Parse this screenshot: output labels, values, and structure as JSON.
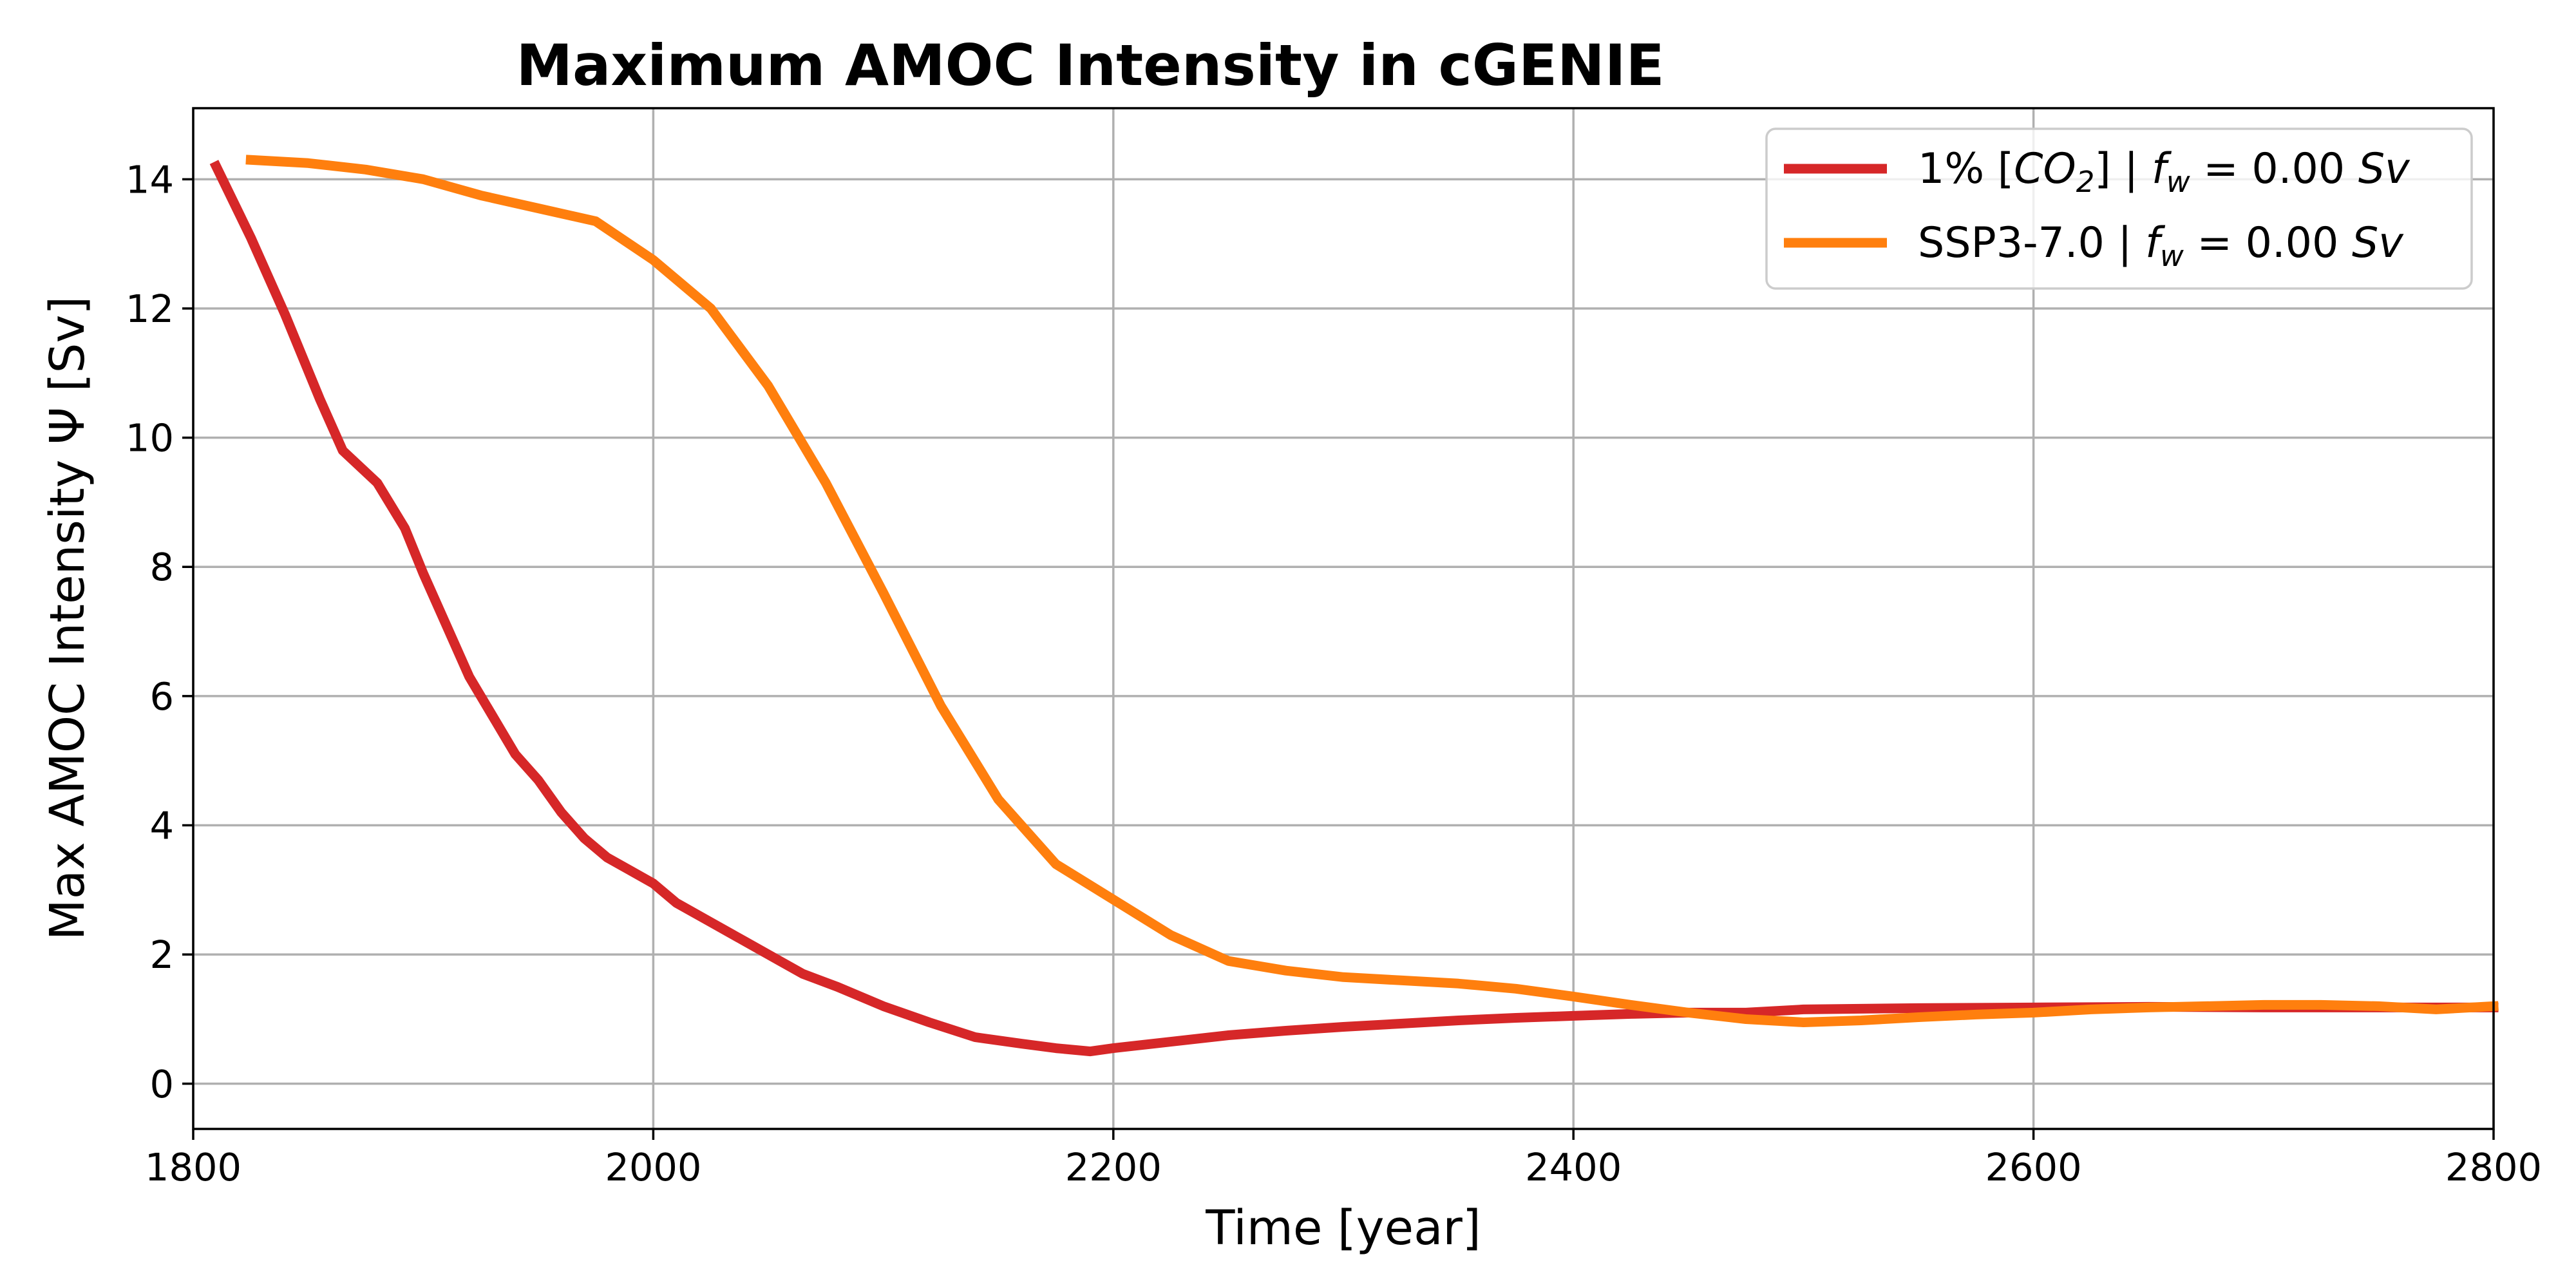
{
  "chart_data": {
    "type": "line",
    "title": "Maximum AMOC Intensity in cGENIE",
    "xlabel": "Time [year]",
    "ylabel": "Max AMOC Intensity Ψ [Sv]",
    "xlim": [
      1800,
      2800
    ],
    "ylim": [
      -0.7,
      15.1
    ],
    "xticks": [
      1800,
      2000,
      2200,
      2400,
      2600,
      2800
    ],
    "xtick_labels": [
      "1800",
      "2000",
      "2200",
      "2400",
      "2600",
      "2800"
    ],
    "yticks": [
      0,
      2,
      4,
      6,
      8,
      10,
      12,
      14
    ],
    "ytick_labels": [
      "0",
      "2",
      "4",
      "6",
      "8",
      "10",
      "12",
      "14"
    ],
    "grid": true,
    "legend_position": "top-right",
    "series": [
      {
        "name": "1% [CO2] | fw = 0.00 Sv",
        "legend": {
          "prefix": "1% [",
          "chem": "CO",
          "chem_sub": "2",
          "mid": "] | ",
          "var": "f",
          "var_sub": "w",
          "eq": " = 0.00 ",
          "unit": "Sv"
        },
        "color": "#d62728",
        "x": [
          1810,
          1825,
          1840,
          1855,
          1865,
          1880,
          1892,
          1900,
          1910,
          1920,
          1930,
          1940,
          1950,
          1960,
          1970,
          1980,
          1990,
          2000,
          2010,
          2025,
          2040,
          2055,
          2065,
          2080,
          2100,
          2120,
          2140,
          2160,
          2175,
          2190,
          2200,
          2225,
          2250,
          2275,
          2300,
          2325,
          2350,
          2375,
          2400,
          2425,
          2450,
          2475,
          2500,
          2550,
          2600,
          2650,
          2700,
          2750,
          2800
        ],
        "y": [
          14.2,
          13.1,
          11.9,
          10.6,
          9.8,
          9.3,
          8.6,
          7.9,
          7.1,
          6.3,
          5.7,
          5.1,
          4.7,
          4.2,
          3.8,
          3.5,
          3.3,
          3.1,
          2.8,
          2.5,
          2.2,
          1.9,
          1.7,
          1.5,
          1.2,
          0.95,
          0.72,
          0.62,
          0.55,
          0.5,
          0.55,
          0.65,
          0.75,
          0.82,
          0.88,
          0.93,
          0.98,
          1.02,
          1.05,
          1.08,
          1.1,
          1.1,
          1.15,
          1.17,
          1.18,
          1.19,
          1.18,
          1.18,
          1.18
        ]
      },
      {
        "name": "SSP3-7.0 | fw = 0.00 Sv",
        "legend": {
          "prefix": "SSP3-7.0 | ",
          "var": "f",
          "var_sub": "w",
          "eq": " = 0.00 ",
          "unit": "Sv"
        },
        "color": "#ff7f0e",
        "x": [
          1825,
          1850,
          1875,
          1900,
          1925,
          1950,
          1975,
          2000,
          2025,
          2050,
          2075,
          2100,
          2125,
          2150,
          2175,
          2200,
          2225,
          2250,
          2275,
          2300,
          2325,
          2350,
          2375,
          2400,
          2425,
          2450,
          2475,
          2500,
          2525,
          2550,
          2575,
          2600,
          2625,
          2650,
          2675,
          2700,
          2725,
          2750,
          2775,
          2800
        ],
        "y": [
          14.3,
          14.25,
          14.15,
          14.0,
          13.75,
          13.55,
          13.35,
          12.75,
          12.0,
          10.8,
          9.3,
          7.6,
          5.85,
          4.4,
          3.4,
          2.85,
          2.3,
          1.9,
          1.75,
          1.65,
          1.6,
          1.55,
          1.47,
          1.35,
          1.22,
          1.1,
          1.0,
          0.95,
          0.98,
          1.03,
          1.07,
          1.1,
          1.15,
          1.18,
          1.2,
          1.22,
          1.22,
          1.2,
          1.15,
          1.2
        ]
      }
    ]
  }
}
